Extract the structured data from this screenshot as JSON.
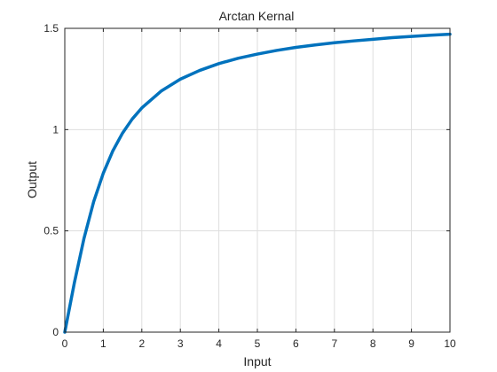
{
  "chart_data": {
    "type": "line",
    "title": "Arctan Kernal",
    "xlabel": "Input",
    "ylabel": "Output",
    "xlim": [
      0,
      10
    ],
    "ylim": [
      0,
      1.5
    ],
    "xticks": [
      0,
      1,
      2,
      3,
      4,
      5,
      6,
      7,
      8,
      9,
      10
    ],
    "xtick_labels": [
      "0",
      "1",
      "2",
      "3",
      "4",
      "5",
      "6",
      "7",
      "8",
      "9",
      "10"
    ],
    "yticks": [
      0,
      0.5,
      1,
      1.5
    ],
    "ytick_labels": [
      "0",
      "0.5",
      "1",
      "1.5"
    ],
    "grid": true,
    "series": [
      {
        "name": "arctan",
        "color": "#0072bd",
        "x": [
          0,
          0.25,
          0.5,
          0.75,
          1,
          1.25,
          1.5,
          1.75,
          2,
          2.5,
          3,
          3.5,
          4,
          4.5,
          5,
          5.5,
          6,
          6.5,
          7,
          7.5,
          8,
          8.5,
          9,
          9.5,
          10
        ],
        "y": [
          0,
          0.245,
          0.464,
          0.644,
          0.785,
          0.896,
          0.983,
          1.052,
          1.107,
          1.19,
          1.249,
          1.292,
          1.326,
          1.352,
          1.373,
          1.391,
          1.406,
          1.418,
          1.429,
          1.438,
          1.446,
          1.454,
          1.46,
          1.466,
          1.471
        ]
      }
    ]
  }
}
